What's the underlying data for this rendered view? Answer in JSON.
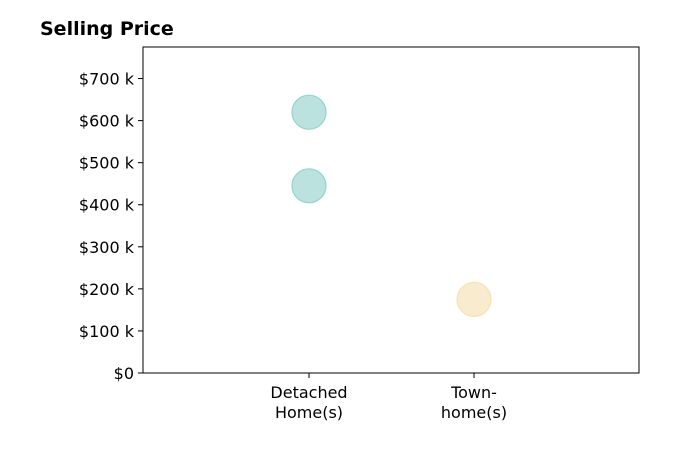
{
  "chart_data": {
    "type": "scatter",
    "title": "Selling Price",
    "categories": [
      "Detached Home(s)",
      "Town-home(s)"
    ],
    "category_labels": [
      [
        "Detached",
        "Home(s)"
      ],
      [
        "Town-",
        "home(s)"
      ]
    ],
    "points": [
      {
        "category": "Detached Home(s)",
        "value": 620000,
        "color": "#8ecfc9"
      },
      {
        "category": "Detached Home(s)",
        "value": 445000,
        "color": "#8ecfc9"
      },
      {
        "category": "Town-home(s)",
        "value": 175000,
        "color": "#f5dfae"
      }
    ],
    "yticks": [
      0,
      100000,
      200000,
      300000,
      400000,
      500000,
      600000,
      700000
    ],
    "ytick_labels": [
      "$0",
      "$100 k",
      "$200 k",
      "$300 k",
      "$400 k",
      "$500 k",
      "$600 k",
      "$700 k"
    ],
    "ylim": [
      0,
      775000
    ],
    "xlabel": "",
    "ylabel": "",
    "grid": false,
    "marker_opacity": 0.6
  }
}
